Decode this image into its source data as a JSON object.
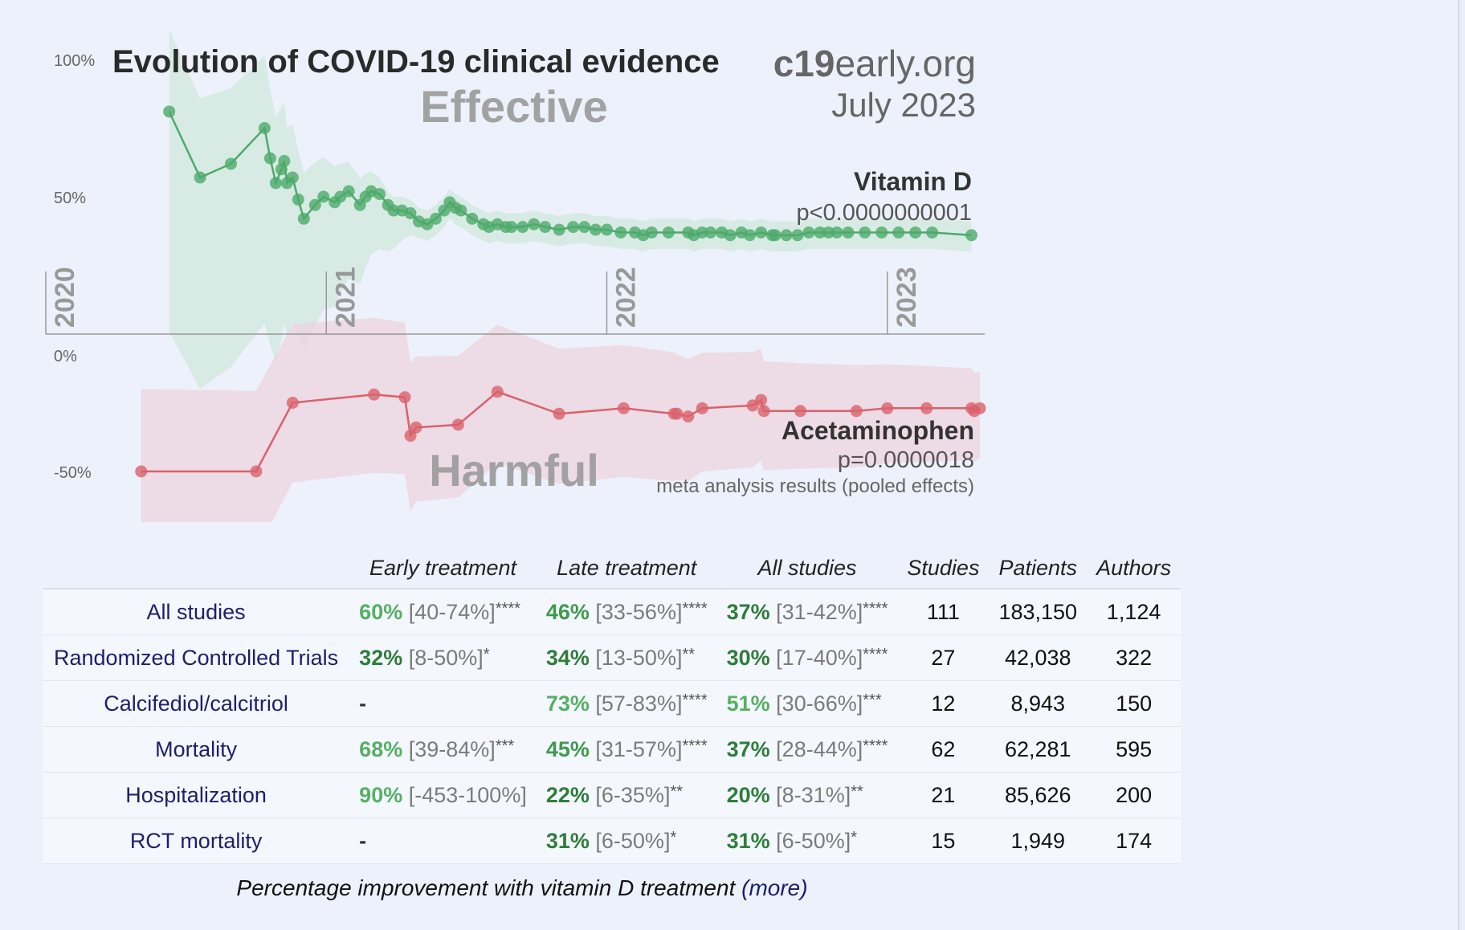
{
  "chart_data": {
    "type": "line",
    "title": "Evolution of COVID-19 clinical evidence",
    "site_bold": "c19",
    "site_rest": "early.org",
    "date": "July 2023",
    "label_effective": "Effective",
    "label_harmful": "Harmful",
    "footnote": "meta analysis results (pooled effects)",
    "y_ticks": [
      {
        "value": 100,
        "label": "100%"
      },
      {
        "value": 50,
        "label": "50%"
      },
      {
        "value": 0,
        "label": "0%"
      },
      {
        "value": -50,
        "label": "-50%"
      }
    ],
    "x_ticks": [
      {
        "value": 2020.0,
        "label": "2020"
      },
      {
        "value": 2021.0,
        "label": "2021"
      },
      {
        "value": 2022.0,
        "label": "2022"
      },
      {
        "value": 2023.0,
        "label": "2023"
      }
    ],
    "xlim": [
      2020.0,
      2023.35
    ],
    "ylim": [
      -60,
      100
    ],
    "series": [
      {
        "name": "Vitamin D",
        "pvalue": "p<0.0000000001",
        "color": "#4daa6a",
        "band_color": "#cfe8dc",
        "x": [
          2020.44,
          2020.55,
          2020.66,
          2020.78,
          2020.8,
          2020.82,
          2020.84,
          2020.85,
          2020.86,
          2020.88,
          2020.9,
          2020.92,
          2020.96,
          2020.99,
          2021.03,
          2021.05,
          2021.08,
          2021.12,
          2021.14,
          2021.16,
          2021.19,
          2021.22,
          2021.24,
          2021.27,
          2021.3,
          2021.33,
          2021.36,
          2021.39,
          2021.42,
          2021.44,
          2021.46,
          2021.48,
          2021.52,
          2021.56,
          2021.58,
          2021.61,
          2021.64,
          2021.66,
          2021.7,
          2021.74,
          2021.78,
          2021.83,
          2021.88,
          2021.92,
          2021.96,
          2022.0,
          2022.05,
          2022.1,
          2022.13,
          2022.16,
          2022.22,
          2022.29,
          2022.31,
          2022.34,
          2022.37,
          2022.41,
          2022.44,
          2022.48,
          2022.51,
          2022.55,
          2022.59,
          2022.6,
          2022.64,
          2022.68,
          2022.72,
          2022.76,
          2022.79,
          2022.82,
          2022.86,
          2022.92,
          2022.98,
          2023.04,
          2023.1,
          2023.16,
          2023.3
        ],
        "y": [
          81,
          57,
          62,
          75,
          64,
          55,
          60,
          63,
          55,
          57,
          49,
          42,
          47,
          50,
          48,
          50,
          52,
          47,
          50,
          52,
          51,
          47,
          45,
          45,
          44,
          41,
          40,
          42,
          45,
          48,
          46,
          45,
          42,
          40,
          39,
          40,
          39,
          39,
          39,
          40,
          39,
          38,
          39,
          39,
          38,
          38,
          37,
          37,
          36,
          37,
          37,
          37,
          36,
          37,
          37,
          37,
          36,
          37,
          36,
          37,
          36,
          36,
          36,
          36,
          37,
          37,
          37,
          37,
          37,
          37,
          37,
          37,
          37,
          37,
          36
        ]
      },
      {
        "name": "Acetaminophen",
        "pvalue": "p=0.0000018",
        "color": "#d9616b",
        "band_color": "#ecd3dd",
        "x": [
          2020.34,
          2020.75,
          2020.88,
          2021.17,
          2021.28,
          2021.3,
          2021.32,
          2021.47,
          2021.61,
          2021.83,
          2022.06,
          2022.24,
          2022.25,
          2022.29,
          2022.34,
          2022.52,
          2022.55,
          2022.56,
          2022.69,
          2022.89,
          2023.0,
          2023.14,
          2023.3,
          2023.31,
          2023.33
        ],
        "y": [
          -50,
          -50,
          -25,
          -22,
          -23,
          -37,
          -34,
          -33,
          -21,
          -29,
          -27,
          -29,
          -29,
          -30,
          -27,
          -26,
          -24,
          -28,
          -28,
          -28,
          -27,
          -27,
          -27,
          -28,
          -27
        ]
      }
    ]
  },
  "table": {
    "headers": [
      "",
      "Early treatment",
      "Late treatment",
      "All studies",
      "Studies",
      "Patients",
      "Authors"
    ],
    "rows": [
      {
        "label": "All studies",
        "early": {
          "pct": "60%",
          "ci": "[40-74%]",
          "sig": "****",
          "color": "#55b063"
        },
        "late": {
          "pct": "46%",
          "ci": "[33-56%]",
          "sig": "****",
          "color": "#3e9a4e"
        },
        "all": {
          "pct": "37%",
          "ci": "[31-42%]",
          "sig": "****",
          "color": "#2e7d3a"
        },
        "studies": "111",
        "patients": "183,150",
        "authors": "1,124"
      },
      {
        "label": "Randomized Controlled Trials",
        "early": {
          "pct": "32%",
          "ci": "[8-50%]",
          "sig": "*",
          "color": "#2e7d3a"
        },
        "late": {
          "pct": "34%",
          "ci": "[13-50%]",
          "sig": "**",
          "color": "#2e7d3a"
        },
        "all": {
          "pct": "30%",
          "ci": "[17-40%]",
          "sig": "****",
          "color": "#2e7d3a"
        },
        "studies": "27",
        "patients": "42,038",
        "authors": "322"
      },
      {
        "label": "Calcifediol/calcitriol",
        "early": {
          "pct": "-",
          "ci": "",
          "sig": "",
          "color": "#333333"
        },
        "late": {
          "pct": "73%",
          "ci": "[57-83%]",
          "sig": "****",
          "color": "#55b063"
        },
        "all": {
          "pct": "51%",
          "ci": "[30-66%]",
          "sig": "***",
          "color": "#55b063"
        },
        "studies": "12",
        "patients": "8,943",
        "authors": "150"
      },
      {
        "label": "Mortality",
        "early": {
          "pct": "68%",
          "ci": "[39-84%]",
          "sig": "***",
          "color": "#55b063"
        },
        "late": {
          "pct": "45%",
          "ci": "[31-57%]",
          "sig": "****",
          "color": "#3e9a4e"
        },
        "all": {
          "pct": "37%",
          "ci": "[28-44%]",
          "sig": "****",
          "color": "#2e7d3a"
        },
        "studies": "62",
        "patients": "62,281",
        "authors": "595"
      },
      {
        "label": "Hospitalization",
        "early": {
          "pct": "90%",
          "ci": "[-453-100%]",
          "sig": "",
          "color": "#55b063"
        },
        "late": {
          "pct": "22%",
          "ci": "[6-35%]",
          "sig": "**",
          "color": "#2e7d3a"
        },
        "all": {
          "pct": "20%",
          "ci": "[8-31%]",
          "sig": "**",
          "color": "#2e7d3a"
        },
        "studies": "21",
        "patients": "85,626",
        "authors": "200"
      },
      {
        "label": "RCT mortality",
        "early": {
          "pct": "-",
          "ci": "",
          "sig": "",
          "color": "#333333"
        },
        "late": {
          "pct": "31%",
          "ci": "[6-50%]",
          "sig": "*",
          "color": "#2e7d3a"
        },
        "all": {
          "pct": "31%",
          "ci": "[6-50%]",
          "sig": "*",
          "color": "#2e7d3a"
        },
        "studies": "15",
        "patients": "1,949",
        "authors": "174"
      }
    ]
  },
  "caption": {
    "text": "Percentage improvement with vitamin D treatment",
    "link": "(more)"
  }
}
